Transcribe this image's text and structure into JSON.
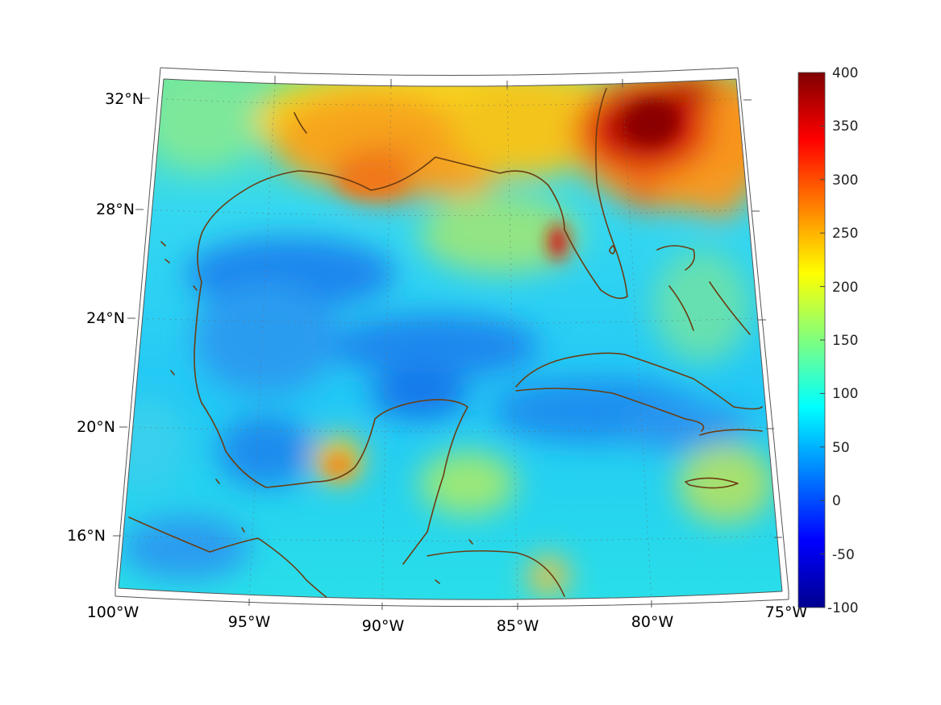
{
  "map": {
    "longitude_labels": [
      "100°W",
      "95°W",
      "90°W",
      "85°W",
      "80°W",
      "75°W"
    ],
    "latitude_labels": [
      "32°N",
      "28°N",
      "24°N",
      "20°N",
      "16°N"
    ],
    "extent": {
      "lon_min": -100,
      "lon_max": -75,
      "lat_min": 14,
      "lat_max": 33
    },
    "projection": "conic",
    "grid": "dotted",
    "coastline_color": "#6b3d12",
    "colormap": "jet"
  },
  "colorbar": {
    "tick_labels": [
      "400",
      "350",
      "300",
      "250",
      "200",
      "150",
      "100",
      "50",
      "0",
      "-50",
      "-100"
    ],
    "min": -100,
    "max": 400
  }
}
